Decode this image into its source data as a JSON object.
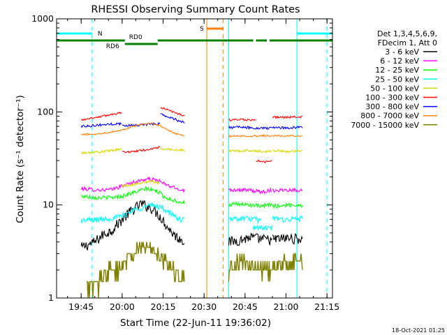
{
  "chart_data": {
    "type": "line",
    "title": "RHESSI Observing Summary Count Rates",
    "xlabel": "Start Time (22-Jun-11 19:36:02)",
    "ylabel": "Count Rate (s⁻¹ detector⁻¹)",
    "x_unit": "minutes after 19:36:02 UTC",
    "xlim": [
      0,
      101
    ],
    "ylim": [
      1,
      1000
    ],
    "y_scale": "log",
    "grid": false,
    "legend_position": "right",
    "x_ticks": [
      {
        "value": 9,
        "label": "19:45"
      },
      {
        "value": 24,
        "label": "20:00"
      },
      {
        "value": 39,
        "label": "20:15"
      },
      {
        "value": 54,
        "label": "20:30"
      },
      {
        "value": 69,
        "label": "20:45"
      },
      {
        "value": 84,
        "label": "21:00"
      },
      {
        "value": 99,
        "label": "21:15"
      }
    ],
    "y_ticks": [
      {
        "value": 1,
        "label": "1"
      },
      {
        "value": 10,
        "label": "10"
      },
      {
        "value": 100,
        "label": "100"
      },
      {
        "value": 1000,
        "label": "1000"
      }
    ],
    "legend_header": [
      "Det 1,3,4,5,6,9,",
      "FDecim 1, Att 0"
    ],
    "series": [
      {
        "name": "3 - 6 keV",
        "color": "#000000",
        "segments": [
          {
            "x": [
              9,
              14,
              17,
              20,
              24,
              27,
              31,
              35,
              38,
              41,
              44,
              47
            ],
            "y": [
              3.5,
              4.0,
              4.8,
              5.3,
              7.0,
              8.5,
              10.3,
              9.2,
              7.5,
              5.6,
              4.5,
              4.1
            ]
          },
          {
            "x": [
              63,
              67,
              71,
              75,
              79
            ],
            "y": [
              4.0,
              4.2,
              4.5,
              4.3,
              4.2
            ]
          },
          {
            "x": [
              79,
              85,
              90
            ],
            "y": [
              4.3,
              4.4,
              4.3
            ]
          }
        ]
      },
      {
        "name": "6 - 12 keV",
        "color": "#ff00ff",
        "segments": [
          {
            "x": [
              9,
              15,
              20,
              24,
              28,
              33,
              37,
              40,
              44,
              47
            ],
            "y": [
              15.0,
              14.5,
              14.6,
              16.0,
              17.5,
              19.0,
              18.5,
              16.5,
              15.0,
              14.3
            ]
          },
          {
            "x": [
              63,
              67,
              71,
              75,
              79
            ],
            "y": [
              14.5,
              14.6,
              14.3,
              13.8,
              14.5
            ]
          },
          {
            "x": [
              79,
              85,
              90
            ],
            "y": [
              14.3,
              14.6,
              14.4
            ]
          }
        ]
      },
      {
        "name": "12 - 25 keV",
        "color": "#00ff00",
        "segments": [
          {
            "x": [
              9,
              15,
              20,
              24,
              28,
              33,
              37,
              40,
              44,
              47
            ],
            "y": [
              12.5,
              12.0,
              12.0,
              12.5,
              13.5,
              15.0,
              14.0,
              12.0,
              11.0,
              10.5
            ]
          },
          {
            "x": [
              63,
              67,
              71,
              75,
              79
            ],
            "y": [
              10.0,
              10.2,
              10.0,
              9.6,
              10.2
            ]
          },
          {
            "x": [
              79,
              85,
              90
            ],
            "y": [
              9.7,
              10.0,
              9.9
            ]
          }
        ]
      },
      {
        "name": "25 - 50 keV",
        "color": "#00ffff",
        "segments": [
          {
            "x": [
              9,
              15,
              20,
              24,
              28,
              32,
              35,
              38,
              41,
              44,
              47
            ],
            "y": [
              6.8,
              7.0,
              7.2,
              7.6,
              8.8,
              9.5,
              10.0,
              9.5,
              8.5,
              7.2,
              6.8
            ]
          },
          {
            "x": [
              63,
              67,
              71,
              75
            ],
            "y": [
              7.0,
              7.2,
              7.1,
              6.8
            ]
          },
          {
            "x": [
              72,
              76,
              79
            ],
            "y": [
              5.8,
              5.6,
              5.7
            ]
          },
          {
            "x": [
              79,
              85,
              90
            ],
            "y": [
              7.1,
              7.0,
              7.2
            ]
          }
        ]
      },
      {
        "name": "50 - 100 keV",
        "color": "#d7d700",
        "segments": [
          {
            "x": [
              9,
              15,
              20,
              24
            ],
            "y": [
              36.0,
              37.0,
              38.5,
              40.0
            ]
          },
          {
            "x": [
              24,
              28,
              32,
              35,
              38
            ],
            "y": [
              16.0,
              16.5,
              17.5,
              18.0,
              17.0
            ]
          },
          {
            "x": [
              38,
              42,
              47
            ],
            "y": [
              40.0,
              39.5,
              38.5
            ]
          },
          {
            "x": [
              63,
              67,
              71,
              75,
              79
            ],
            "y": [
              38.0,
              38.0,
              38.5,
              37.5,
              38.0
            ]
          },
          {
            "x": [
              79,
              85,
              90
            ],
            "y": [
              38.5,
              37.5,
              38.5
            ]
          }
        ]
      },
      {
        "name": "100 - 300 keV",
        "color": "#ff0000",
        "segments": [
          {
            "x": [
              9,
              13,
              17,
              20,
              24
            ],
            "y": [
              82.0,
              86.0,
              90.0,
              94.0,
              99.0
            ]
          },
          {
            "x": [
              24,
              28,
              31,
              35,
              38
            ],
            "y": [
              37.0,
              37.5,
              38.5,
              40.0,
              42.0
            ]
          },
          {
            "x": [
              38,
              41,
              44,
              47
            ],
            "y": [
              112.0,
              104.0,
              97.0,
              90.0
            ]
          },
          {
            "x": [
              63,
              67,
              71,
              73
            ],
            "y": [
              82.0,
              82.5,
              82.0,
              81.0
            ]
          },
          {
            "x": [
              73,
              76,
              79
            ],
            "y": [
              30.0,
              29.0,
              29.5
            ]
          },
          {
            "x": [
              79,
              85,
              90
            ],
            "y": [
              88.0,
              87.5,
              88.5
            ]
          }
        ]
      },
      {
        "name": "300 - 800 keV",
        "color": "#0000ff",
        "segments": [
          {
            "x": [
              9,
              15,
              20,
              24
            ],
            "y": [
              70.0,
              72.0,
              74.0,
              75.0
            ]
          },
          {
            "x": [
              24,
              28,
              32,
              35,
              38
            ],
            "y": [
              71.0,
              72.0,
              73.0,
              74.0,
              75.0
            ]
          },
          {
            "x": [
              38,
              41,
              44,
              47
            ],
            "y": [
              95.0,
              88.0,
              82.0,
              77.0
            ]
          },
          {
            "x": [
              63,
              67,
              71,
              75,
              79
            ],
            "y": [
              68.0,
              68.5,
              67.5,
              67.0,
              66.5
            ]
          },
          {
            "x": [
              79,
              85,
              90
            ],
            "y": [
              68.0,
              67.5,
              68.5
            ]
          }
        ]
      },
      {
        "name": "800 - 7000 keV",
        "color": "#ff8000",
        "segments": [
          {
            "x": [
              9,
              15,
              20,
              24,
              28,
              32,
              35,
              38,
              41,
              44,
              47
            ],
            "y": [
              57.0,
              58.0,
              61.0,
              64.0,
              70.0,
              74.0,
              75.0,
              71.0,
              63.0,
              58.0,
              55.0
            ]
          },
          {
            "x": [
              63,
              67,
              71,
              75,
              79
            ],
            "y": [
              55.0,
              55.0,
              55.0,
              55.5,
              55.5
            ]
          },
          {
            "x": [
              79,
              85,
              90
            ],
            "y": [
              55.5,
              55.0,
              55.5
            ]
          }
        ]
      },
      {
        "name": "7000 - 15000 keV",
        "color": "#808000",
        "segments": [
          {
            "x": [
              11,
              15,
              19,
              22,
              25,
              28,
              31,
              34,
              37,
              40,
              43,
              47
            ],
            "y": [
              1.2,
              1.5,
              2.0,
              2.0,
              2.5,
              3.0,
              3.5,
              3.5,
              3.0,
              2.5,
              2.0,
              1.5
            ]
          },
          {
            "x": [
              63,
              67,
              71,
              75,
              79
            ],
            "y": [
              2.0,
              2.5,
              2.5,
              2.0,
              2.0
            ]
          },
          {
            "x": [
              79,
              85,
              90
            ],
            "y": [
              2.0,
              2.5,
              2.5
            ]
          }
        ]
      }
    ],
    "attenuator_flags": [
      {
        "label": "N",
        "color": "#00ffff",
        "segments": [
          [
            0,
            13
          ]
        ]
      },
      {
        "label": "",
        "color": "#00ffff",
        "segments": [
          [
            88,
            101
          ]
        ]
      },
      {
        "label": "S",
        "color": "#ff8000",
        "segments": [
          [
            55,
            61
          ]
        ]
      }
    ],
    "rd_flags": [
      {
        "label": "RD0",
        "color": "#008000",
        "level": "upper",
        "segments": [
          [
            0,
            25
          ],
          [
            37,
            72
          ],
          [
            78,
            101
          ]
        ]
      },
      {
        "label": "",
        "color": "#008000",
        "level": "upper",
        "segments": [
          [
            73,
            77
          ]
        ]
      },
      {
        "label": "RD6",
        "color": "#008000",
        "level": "lower",
        "segments": [
          [
            25,
            37
          ]
        ]
      }
    ],
    "vertical_markers": [
      {
        "x": 0,
        "color": "#00ffff",
        "style": "solid"
      },
      {
        "x": 13,
        "color": "#00ffff",
        "style": "dashed"
      },
      {
        "x": 55,
        "color": "#ff8000",
        "style": "solid"
      },
      {
        "x": 61,
        "color": "#ff8000",
        "style": "dashed"
      },
      {
        "x": 63,
        "color": "#00ffff",
        "style": "solid"
      },
      {
        "x": 88,
        "color": "#00ffff",
        "style": "solid"
      },
      {
        "x": 99,
        "color": "#00ffff",
        "style": "dashed"
      }
    ],
    "footer_timestamp": "18-Oct-2021 01:25"
  }
}
